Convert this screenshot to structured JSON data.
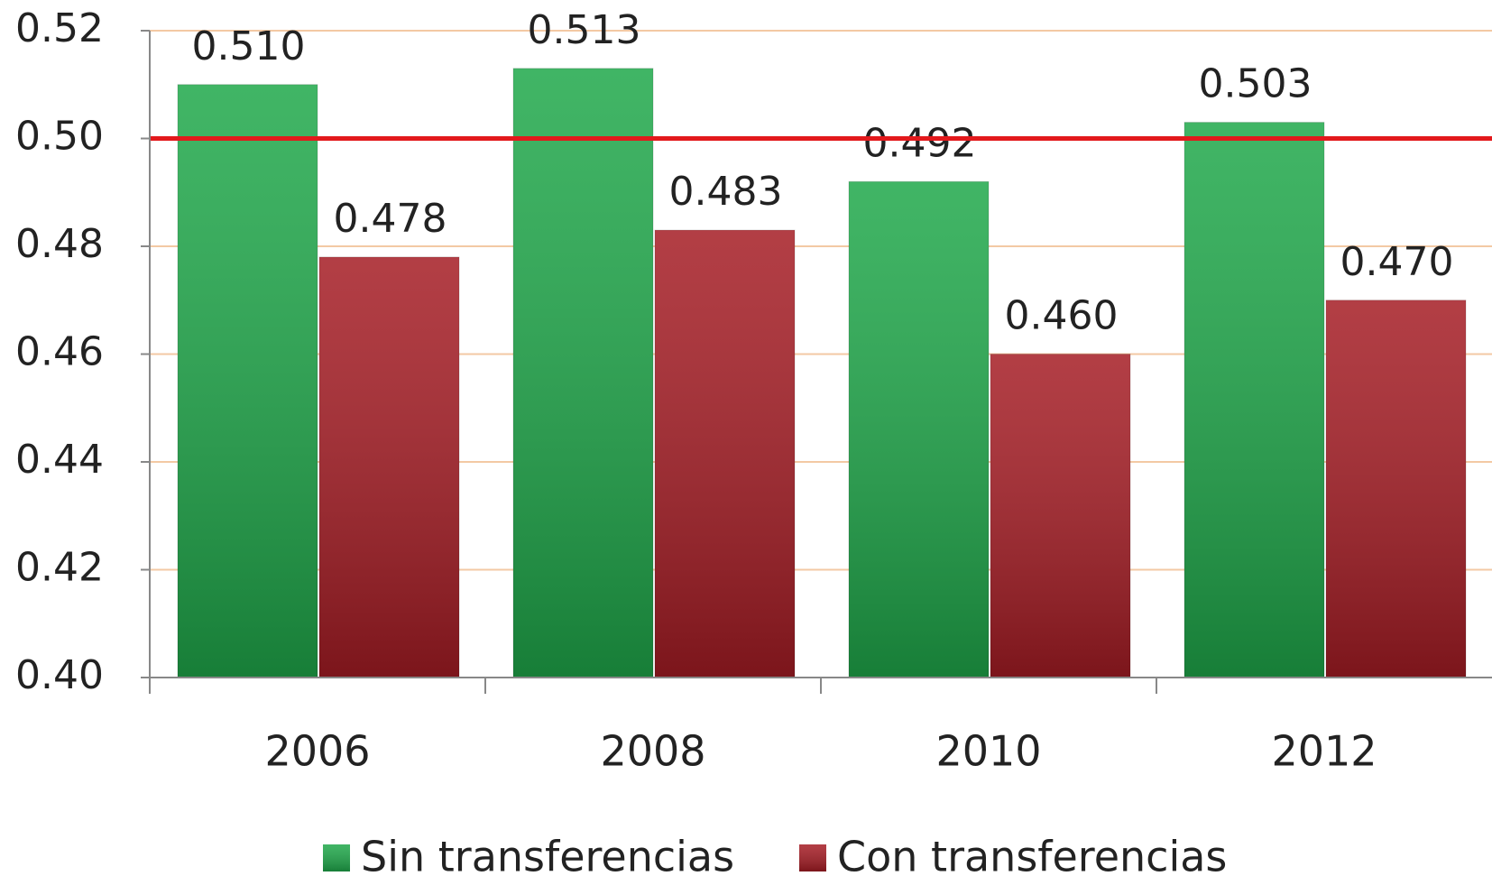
{
  "chart_data": {
    "type": "bar",
    "categories": [
      "2006",
      "2008",
      "2010",
      "2012"
    ],
    "series": [
      {
        "name": "Sin transferencias",
        "color": "#1fa84a",
        "values": [
          0.51,
          0.513,
          0.492,
          0.503
        ],
        "value_labels": [
          "0.510",
          "0.513",
          "0.492",
          "0.503"
        ]
      },
      {
        "name": "Con transferencias",
        "color": "#a51c24",
        "values": [
          0.478,
          0.483,
          0.46,
          0.47
        ],
        "value_labels": [
          "0.478",
          "0.483",
          "0.460",
          "0.470"
        ]
      }
    ],
    "ylim": [
      0.4,
      0.52
    ],
    "yticks": [
      {
        "value": 0.4,
        "label": "0.40"
      },
      {
        "value": 0.42,
        "label": "0.42"
      },
      {
        "value": 0.44,
        "label": "0.44"
      },
      {
        "value": 0.46,
        "label": "0.46"
      },
      {
        "value": 0.48,
        "label": "0.48"
      },
      {
        "value": 0.5,
        "label": "0.50"
      },
      {
        "value": 0.52,
        "label": "0.52"
      }
    ],
    "grid": true,
    "grid_color": "#f3c9a4",
    "reference_line": {
      "value": 0.5,
      "color": "#e3191c"
    },
    "legend": "bottom"
  }
}
